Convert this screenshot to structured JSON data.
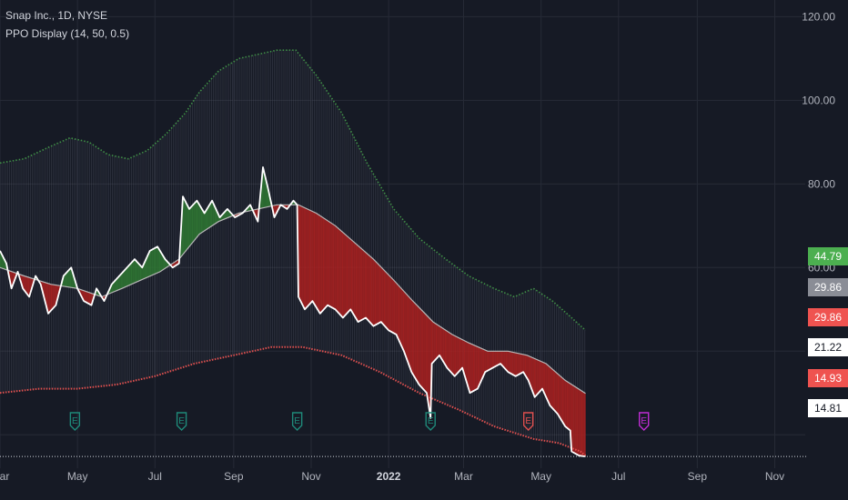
{
  "legend": {
    "symbol": "Snap Inc., 1D, NYSE",
    "indicator": "PPO Display (14, 50, 0.5)"
  },
  "colors": {
    "background": "#161a25",
    "grid": "#262a36",
    "upper_band": "#3f8f46",
    "lower_band": "#e0504f",
    "price": "#ffffff",
    "ma": "#b8b8b8",
    "fill_green": "#2f7d32",
    "fill_red": "#b2201f",
    "vertical_hatch": "#7a7f8e",
    "earnings_past": "#1f8a7a",
    "earnings_red": "#e0504f",
    "earnings_future": "#c02dd6"
  },
  "price_tags": [
    {
      "value": "44.79",
      "bg": "#4caf50",
      "fg": "#ffffff"
    },
    {
      "value": "29.86",
      "bg": "#8a8d96",
      "fg": "#ffffff"
    },
    {
      "value": "29.86",
      "bg": "#ef5350",
      "fg": "#ffffff"
    },
    {
      "value": "21.22",
      "bg": "#ffffff",
      "fg": "#131722"
    },
    {
      "value": "14.93",
      "bg": "#ef5350",
      "fg": "#ffffff"
    },
    {
      "value": "14.81",
      "bg": "#ffffff",
      "fg": "#131722"
    }
  ],
  "earnings_markers": [
    {
      "date": "2021-04-29",
      "label": "E",
      "color": "#1f8a7a"
    },
    {
      "date": "2021-07-22",
      "label": "E",
      "color": "#1f8a7a"
    },
    {
      "date": "2021-10-21",
      "label": "E",
      "color": "#1f8a7a"
    },
    {
      "date": "2022-02-03",
      "label": "E",
      "color": "#1f8a7a"
    },
    {
      "date": "2022-04-21",
      "label": "E",
      "color": "#e0504f"
    },
    {
      "date": "2022-07-21",
      "label": "E",
      "color": "#c02dd6"
    }
  ],
  "chart_data": {
    "type": "line",
    "y_ticks": [
      "120.00",
      "100.00",
      "80.00",
      "60.00"
    ],
    "x_ticks": [
      {
        "date": "2021-03-01",
        "label": "Mar"
      },
      {
        "date": "2021-05-01",
        "label": "May"
      },
      {
        "date": "2021-07-01",
        "label": "Jul"
      },
      {
        "date": "2021-09-01",
        "label": "Sep"
      },
      {
        "date": "2021-11-01",
        "label": "Nov"
      },
      {
        "date": "2022-01-01",
        "label": "2022"
      },
      {
        "date": "2022-03-01",
        "label": "Mar"
      },
      {
        "date": "2022-05-01",
        "label": "May"
      },
      {
        "date": "2022-07-01",
        "label": "Jul"
      },
      {
        "date": "2022-09-01",
        "label": "Sep"
      },
      {
        "date": "2022-11-01",
        "label": "Nov"
      }
    ],
    "ylim": [
      12,
      124
    ],
    "xlim": [
      "2021-03-01",
      "2022-11-25"
    ],
    "last_price_line": 14.81,
    "grid": true,
    "series": [
      {
        "role": "upper_band",
        "style": "dotted",
        "points": [
          [
            "2021-03-01",
            85
          ],
          [
            "2021-03-20",
            86
          ],
          [
            "2021-04-10",
            89
          ],
          [
            "2021-04-25",
            91
          ],
          [
            "2021-05-10",
            90
          ],
          [
            "2021-05-25",
            87
          ],
          [
            "2021-06-10",
            86
          ],
          [
            "2021-06-25",
            88
          ],
          [
            "2021-07-10",
            92
          ],
          [
            "2021-07-25",
            97
          ],
          [
            "2021-08-05",
            102
          ],
          [
            "2021-08-20",
            107
          ],
          [
            "2021-09-05",
            110
          ],
          [
            "2021-09-20",
            111
          ],
          [
            "2021-10-05",
            112
          ],
          [
            "2021-10-20",
            112
          ],
          [
            "2021-11-05",
            106
          ],
          [
            "2021-11-25",
            97
          ],
          [
            "2021-12-15",
            85
          ],
          [
            "2022-01-05",
            74
          ],
          [
            "2022-01-25",
            67
          ],
          [
            "2022-02-15",
            62
          ],
          [
            "2022-03-05",
            58
          ],
          [
            "2022-03-25",
            55
          ],
          [
            "2022-04-10",
            53
          ],
          [
            "2022-04-25",
            55
          ],
          [
            "2022-05-10",
            52
          ],
          [
            "2022-05-25",
            48
          ],
          [
            "2022-06-05",
            45
          ]
        ]
      },
      {
        "role": "lower_band",
        "style": "dotted",
        "points": [
          [
            "2021-03-01",
            30
          ],
          [
            "2021-04-01",
            31
          ],
          [
            "2021-05-01",
            31
          ],
          [
            "2021-06-01",
            32
          ],
          [
            "2021-07-01",
            34
          ],
          [
            "2021-08-01",
            37
          ],
          [
            "2021-09-01",
            39
          ],
          [
            "2021-10-01",
            41
          ],
          [
            "2021-10-25",
            41
          ],
          [
            "2021-11-25",
            39
          ],
          [
            "2021-12-25",
            35
          ],
          [
            "2022-01-25",
            30
          ],
          [
            "2022-02-25",
            26
          ],
          [
            "2022-03-25",
            22
          ],
          [
            "2022-04-25",
            19
          ],
          [
            "2022-05-15",
            18
          ],
          [
            "2022-06-01",
            16
          ],
          [
            "2022-06-05",
            15
          ]
        ]
      },
      {
        "role": "ma",
        "style": "solid",
        "points": [
          [
            "2021-03-01",
            60
          ],
          [
            "2021-03-20",
            58
          ],
          [
            "2021-04-10",
            56
          ],
          [
            "2021-05-01",
            55
          ],
          [
            "2021-05-20",
            53
          ],
          [
            "2021-06-05",
            55
          ],
          [
            "2021-06-20",
            57
          ],
          [
            "2021-07-05",
            59
          ],
          [
            "2021-07-20",
            62
          ],
          [
            "2021-08-05",
            68
          ],
          [
            "2021-08-20",
            71
          ],
          [
            "2021-09-05",
            73
          ],
          [
            "2021-09-20",
            74
          ],
          [
            "2021-10-05",
            75
          ],
          [
            "2021-10-22",
            75
          ],
          [
            "2021-11-05",
            73
          ],
          [
            "2021-11-20",
            70
          ],
          [
            "2021-12-05",
            66
          ],
          [
            "2021-12-20",
            62
          ],
          [
            "2022-01-05",
            57
          ],
          [
            "2022-01-20",
            52
          ],
          [
            "2022-02-05",
            47
          ],
          [
            "2022-02-20",
            44
          ],
          [
            "2022-03-05",
            42
          ],
          [
            "2022-03-20",
            40
          ],
          [
            "2022-04-05",
            40
          ],
          [
            "2022-04-20",
            39
          ],
          [
            "2022-05-05",
            37
          ],
          [
            "2022-05-20",
            33
          ],
          [
            "2022-06-05",
            29.9
          ]
        ]
      },
      {
        "role": "price",
        "style": "solid",
        "points": [
          [
            "2021-03-01",
            64
          ],
          [
            "2021-03-06",
            61
          ],
          [
            "2021-03-10",
            55
          ],
          [
            "2021-03-15",
            59
          ],
          [
            "2021-03-19",
            55
          ],
          [
            "2021-03-24",
            53
          ],
          [
            "2021-03-29",
            58
          ],
          [
            "2021-04-02",
            56
          ],
          [
            "2021-04-08",
            49
          ],
          [
            "2021-04-14",
            51
          ],
          [
            "2021-04-20",
            58
          ],
          [
            "2021-04-26",
            60
          ],
          [
            "2021-05-01",
            55
          ],
          [
            "2021-05-06",
            52
          ],
          [
            "2021-05-12",
            51
          ],
          [
            "2021-05-16",
            55
          ],
          [
            "2021-05-22",
            52
          ],
          [
            "2021-05-28",
            56
          ],
          [
            "2021-06-03",
            58
          ],
          [
            "2021-06-09",
            60
          ],
          [
            "2021-06-15",
            62
          ],
          [
            "2021-06-21",
            60
          ],
          [
            "2021-06-27",
            64
          ],
          [
            "2021-07-03",
            65
          ],
          [
            "2021-07-09",
            62
          ],
          [
            "2021-07-15",
            60
          ],
          [
            "2021-07-20",
            61
          ],
          [
            "2021-07-23",
            77
          ],
          [
            "2021-07-28",
            74
          ],
          [
            "2021-08-03",
            76
          ],
          [
            "2021-08-09",
            73
          ],
          [
            "2021-08-15",
            76
          ],
          [
            "2021-08-21",
            72
          ],
          [
            "2021-08-27",
            74
          ],
          [
            "2021-09-02",
            72
          ],
          [
            "2021-09-08",
            73
          ],
          [
            "2021-09-14",
            75
          ],
          [
            "2021-09-20",
            71
          ],
          [
            "2021-09-24",
            84
          ],
          [
            "2021-09-28",
            79
          ],
          [
            "2021-10-03",
            72
          ],
          [
            "2021-10-08",
            75
          ],
          [
            "2021-10-13",
            74
          ],
          [
            "2021-10-18",
            76
          ],
          [
            "2021-10-21",
            75
          ],
          [
            "2021-10-22",
            53
          ],
          [
            "2021-10-27",
            50
          ],
          [
            "2021-11-02",
            52
          ],
          [
            "2021-11-08",
            49
          ],
          [
            "2021-11-14",
            51
          ],
          [
            "2021-11-20",
            50
          ],
          [
            "2021-11-26",
            48
          ],
          [
            "2021-12-02",
            50
          ],
          [
            "2021-12-08",
            47
          ],
          [
            "2021-12-14",
            48
          ],
          [
            "2021-12-20",
            46
          ],
          [
            "2021-12-26",
            47
          ],
          [
            "2022-01-01",
            45
          ],
          [
            "2022-01-07",
            44
          ],
          [
            "2022-01-13",
            40
          ],
          [
            "2022-01-19",
            35
          ],
          [
            "2022-01-25",
            32
          ],
          [
            "2022-01-31",
            30
          ],
          [
            "2022-02-03",
            24
          ],
          [
            "2022-02-04",
            37
          ],
          [
            "2022-02-10",
            39
          ],
          [
            "2022-02-16",
            36
          ],
          [
            "2022-02-22",
            34
          ],
          [
            "2022-02-28",
            36
          ],
          [
            "2022-03-06",
            30
          ],
          [
            "2022-03-12",
            31
          ],
          [
            "2022-03-18",
            35
          ],
          [
            "2022-03-24",
            36
          ],
          [
            "2022-03-30",
            37
          ],
          [
            "2022-04-05",
            35
          ],
          [
            "2022-04-11",
            34
          ],
          [
            "2022-04-17",
            35
          ],
          [
            "2022-04-21",
            33
          ],
          [
            "2022-04-26",
            29
          ],
          [
            "2022-05-02",
            31
          ],
          [
            "2022-05-08",
            27
          ],
          [
            "2022-05-14",
            25
          ],
          [
            "2022-05-20",
            22
          ],
          [
            "2022-05-24",
            21
          ],
          [
            "2022-05-25",
            16
          ],
          [
            "2022-05-31",
            15
          ],
          [
            "2022-06-05",
            14.8
          ]
        ]
      }
    ]
  }
}
